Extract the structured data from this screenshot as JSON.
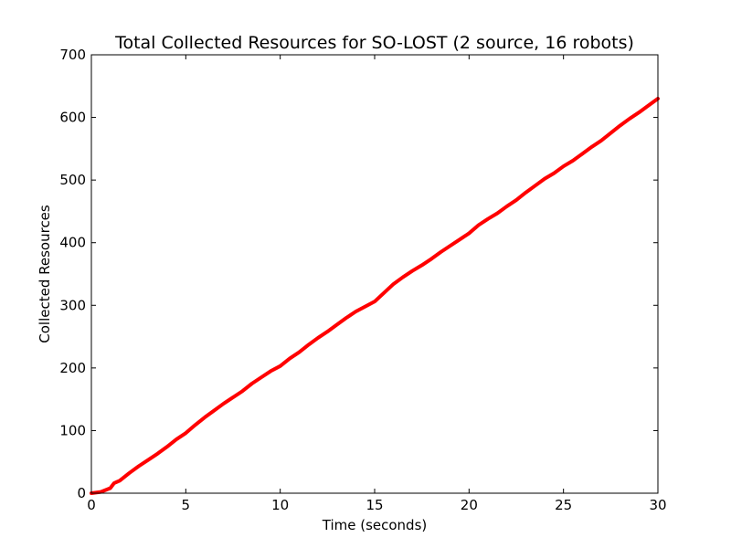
{
  "chart_data": {
    "type": "line",
    "title": "Total Collected Resources for SO-LOST (2 source, 16 robots)",
    "xlabel": "Time (seconds)",
    "ylabel": "Collected Resources",
    "xlim": [
      0,
      30
    ],
    "ylim": [
      0,
      700
    ],
    "x_ticks": [
      "0",
      "5",
      "10",
      "15",
      "20",
      "25",
      "30"
    ],
    "y_ticks": [
      "0",
      "100",
      "200",
      "300",
      "400",
      "500",
      "600",
      "700"
    ],
    "grid": false,
    "legend": "none",
    "series": [
      {
        "color": "#ff0000",
        "x": [
          0,
          0.5,
          1.0,
          1.2,
          1.5,
          2,
          2.5,
          3,
          3.5,
          4,
          4.5,
          5,
          5.5,
          6,
          6.5,
          7,
          7.5,
          8,
          8.5,
          9,
          9.5,
          10,
          10.5,
          11,
          11.5,
          12,
          12.5,
          13,
          13.5,
          14,
          14.5,
          15,
          15.5,
          16,
          16.5,
          17,
          17.5,
          18,
          18.5,
          19,
          19.5,
          20,
          20.5,
          21,
          21.5,
          22,
          22.5,
          23,
          23.5,
          24,
          24.5,
          25,
          25.5,
          26,
          26.5,
          27,
          27.5,
          28,
          28.5,
          29,
          29.5,
          30
        ],
        "y": [
          0,
          2,
          8,
          16,
          20,
          32,
          43,
          53,
          63,
          74,
          86,
          96,
          109,
          121,
          132,
          143,
          153,
          163,
          175,
          185,
          195,
          203,
          215,
          225,
          237,
          248,
          258,
          269,
          280,
          290,
          298,
          306,
          320,
          334,
          345,
          355,
          364,
          374,
          385,
          395,
          405,
          415,
          428,
          438,
          447,
          458,
          468,
          480,
          491,
          502,
          511,
          522,
          531,
          542,
          553,
          563,
          575,
          587,
          598,
          608,
          619,
          630
        ]
      }
    ]
  }
}
